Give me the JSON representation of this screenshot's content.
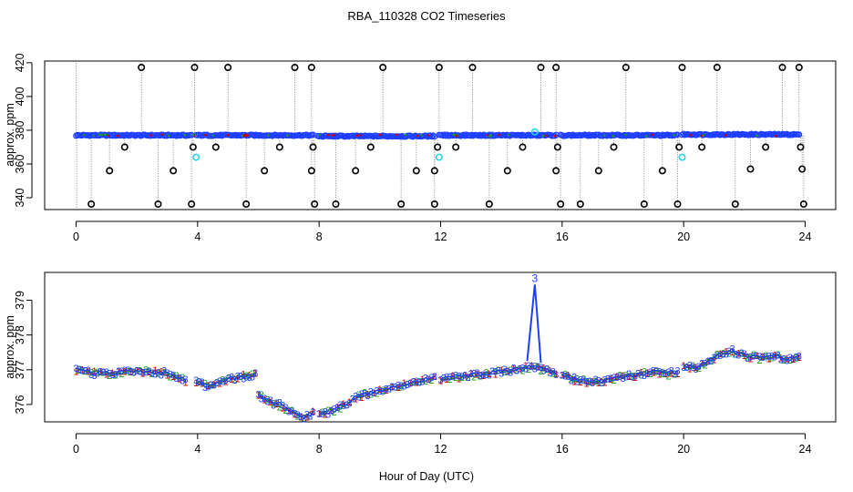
{
  "chart_data": [
    {
      "id": "top",
      "type": "scatter",
      "title": "RBA_110328  CO2 Timeseries",
      "xlabel": "",
      "ylabel": "approx. ppm",
      "xlim": [
        0,
        24
      ],
      "ylim": [
        333,
        421
      ],
      "xticks": [
        0,
        4,
        8,
        12,
        16,
        20,
        24
      ],
      "yticks": [
        340,
        360,
        380,
        400,
        420
      ],
      "segments": [
        {
          "start": 0.0,
          "end": 3.8,
          "level": 377
        },
        {
          "start": 3.95,
          "end": 7.8,
          "level": 377
        },
        {
          "start": 7.95,
          "end": 11.8,
          "level": 376.5
        },
        {
          "start": 11.95,
          "end": 15.8,
          "level": 377
        },
        {
          "start": 15.95,
          "end": 19.8,
          "level": 377
        },
        {
          "start": 19.95,
          "end": 23.8,
          "level": 377.5
        }
      ],
      "high_outliers": [
        2.15,
        3.9,
        5.0,
        7.2,
        7.75,
        10.1,
        11.95,
        13.05,
        15.3,
        15.8,
        18.1,
        19.95,
        21.1,
        23.25,
        23.8
      ],
      "low_outliers": [
        0.5,
        2.7,
        3.8,
        5.6,
        7.85,
        8.55,
        10.7,
        11.8,
        13.6,
        15.95,
        16.6,
        18.7,
        19.8,
        21.7,
        23.95
      ],
      "mid_outliers": [
        {
          "x": 1.1,
          "y": 356
        },
        {
          "x": 1.6,
          "y": 370
        },
        {
          "x": 3.2,
          "y": 356
        },
        {
          "x": 3.85,
          "y": 370
        },
        {
          "x": 4.6,
          "y": 370
        },
        {
          "x": 6.2,
          "y": 356
        },
        {
          "x": 6.7,
          "y": 370
        },
        {
          "x": 7.75,
          "y": 356
        },
        {
          "x": 7.8,
          "y": 370
        },
        {
          "x": 9.2,
          "y": 356
        },
        {
          "x": 9.7,
          "y": 370
        },
        {
          "x": 11.2,
          "y": 356
        },
        {
          "x": 11.8,
          "y": 356
        },
        {
          "x": 11.9,
          "y": 370
        },
        {
          "x": 12.5,
          "y": 370
        },
        {
          "x": 14.2,
          "y": 356
        },
        {
          "x": 14.7,
          "y": 370
        },
        {
          "x": 15.8,
          "y": 356
        },
        {
          "x": 15.85,
          "y": 370
        },
        {
          "x": 17.2,
          "y": 356
        },
        {
          "x": 17.7,
          "y": 370
        },
        {
          "x": 19.3,
          "y": 356
        },
        {
          "x": 19.85,
          "y": 370
        },
        {
          "x": 20.6,
          "y": 370
        },
        {
          "x": 22.2,
          "y": 357
        },
        {
          "x": 22.7,
          "y": 370
        },
        {
          "x": 23.85,
          "y": 370
        },
        {
          "x": 23.9,
          "y": 357
        }
      ],
      "cyan_points": [
        {
          "x": 3.95,
          "y": 364
        },
        {
          "x": 11.95,
          "y": 364
        },
        {
          "x": 19.95,
          "y": 364
        },
        {
          "x": 15.1,
          "y": 379
        }
      ],
      "colors": {
        "main": "#1f3fff",
        "outlier": "#000000",
        "cyan": "#22d3e6",
        "accent1": "#cc0000",
        "accent2": "#1a9e1a",
        "stem": "#9a9a9a"
      }
    },
    {
      "id": "bottom",
      "type": "line",
      "title": "",
      "xlabel": "Hour of Day (UTC)",
      "ylabel": "approx. ppm",
      "xlim": [
        0,
        24
      ],
      "ylim": [
        375.5,
        379.8
      ],
      "xticks": [
        0,
        4,
        8,
        12,
        16,
        20,
        24
      ],
      "yticks": [
        376,
        377,
        378,
        379
      ],
      "series_labels": [
        "1",
        "2",
        "3"
      ],
      "series_colors": [
        "#cc0000",
        "#1a9e1a",
        "#1f3fff"
      ],
      "segments": [
        {
          "x": [
            0.0,
            0.6,
            1.2,
            1.8,
            2.4,
            3.0,
            3.6
          ],
          "y": [
            377.0,
            376.9,
            376.9,
            377.0,
            376.95,
            376.9,
            376.7
          ]
        },
        {
          "x": [
            3.95,
            4.4,
            4.9,
            5.4,
            5.9
          ],
          "y": [
            376.65,
            376.5,
            376.7,
            376.8,
            376.85
          ]
        },
        {
          "x": [
            6.0,
            6.3,
            6.7,
            7.1,
            7.5,
            7.8
          ],
          "y": [
            376.3,
            376.1,
            376.0,
            375.8,
            375.65,
            375.75
          ]
        },
        {
          "x": [
            8.0,
            8.5,
            9.0,
            9.5,
            10.0,
            10.5,
            11.0,
            11.5,
            11.8
          ],
          "y": [
            375.7,
            375.85,
            376.1,
            376.3,
            376.4,
            376.5,
            376.6,
            376.7,
            376.75
          ]
        },
        {
          "x": [
            12.0,
            12.5,
            13.0,
            13.5,
            14.0,
            14.5,
            15.0,
            15.5,
            15.8
          ],
          "y": [
            376.75,
            376.8,
            376.85,
            376.9,
            376.95,
            377.0,
            377.1,
            377.0,
            376.85
          ]
        },
        {
          "x": [
            16.0,
            16.5,
            17.0,
            17.5,
            18.0,
            18.5,
            19.0,
            19.5,
            19.8
          ],
          "y": [
            376.85,
            376.7,
            376.65,
            376.7,
            376.8,
            376.85,
            376.95,
            376.9,
            376.95
          ]
        },
        {
          "x": [
            20.0,
            20.4,
            20.8,
            21.2,
            21.6,
            22.0,
            22.5,
            23.0,
            23.5,
            23.8
          ],
          "y": [
            377.1,
            377.05,
            377.25,
            377.45,
            377.55,
            377.4,
            377.35,
            377.4,
            377.3,
            377.35
          ]
        }
      ],
      "spike": {
        "x": [
          14.85,
          15.1,
          15.3
        ],
        "y": [
          377.25,
          379.45,
          377.2
        ],
        "label": "3"
      }
    }
  ]
}
